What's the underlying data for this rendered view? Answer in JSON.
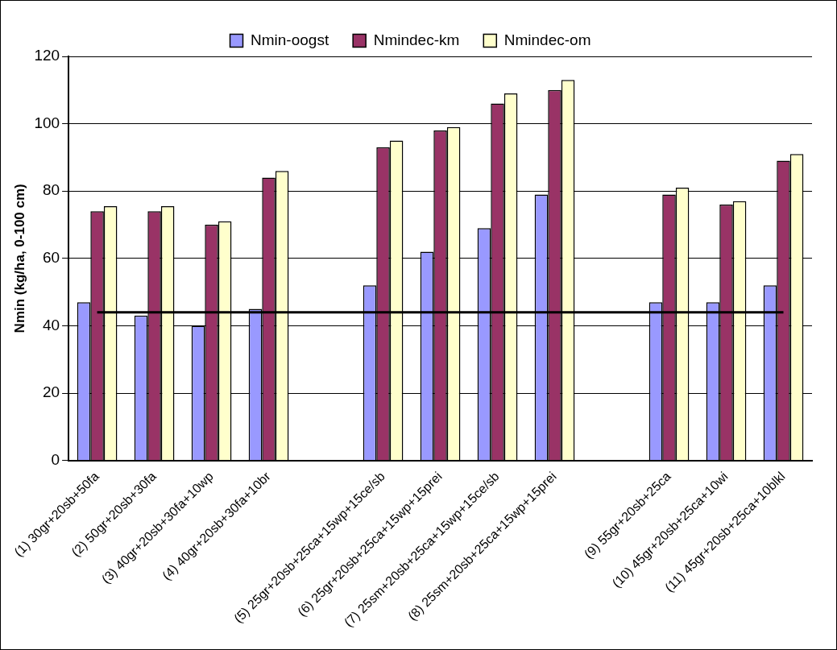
{
  "chart_data": {
    "type": "bar",
    "ylabel": "Nmin (kg/ha, 0-100 cm)",
    "categories": [
      "(1) 30gr+20sb+50fa",
      "(2) 50gr+20sb+30fa",
      "(3) 40gr+20sb+30fa+10wp",
      "(4) 40gr+20sb+30fa+10br",
      null,
      "(5) 25gr+20sb+25ca+15wp+15ce/sb",
      "(6) 25gr+20sb+25ca+15wp+15prei",
      "(7) 25sm+20sb+25ca+15wp+15ce/sb",
      "(8) 25sm+20sb+25ca+15wp+15prei",
      null,
      "(9) 55gr+20sb+25ca",
      "(10) 45gr+20sb+25ca+10wi",
      "(11) 45gr+20sb+25ca+10blkl"
    ],
    "series": [
      {
        "name": "Nmin-oogst",
        "color": "#9999ff",
        "values": [
          47,
          43,
          40,
          45,
          null,
          52,
          62,
          69,
          79,
          null,
          47,
          47,
          52
        ]
      },
      {
        "name": "Nmindec-km",
        "color": "#993366",
        "values": [
          74,
          74,
          70,
          84,
          null,
          93,
          98,
          106,
          110,
          null,
          79,
          76,
          89
        ]
      },
      {
        "name": "Nmindec-om",
        "color": "#ffffcc",
        "values": [
          75.5,
          75.5,
          71,
          86,
          null,
          95,
          99,
          109,
          113,
          null,
          81,
          77,
          91
        ]
      }
    ],
    "ylim": [
      0,
      120
    ],
    "yticks": [
      0,
      20,
      40,
      60,
      80,
      100,
      120
    ],
    "grid": "y",
    "legend": "top",
    "ref_lines": [
      {
        "axis": "y",
        "value": 44,
        "color": "#000000"
      }
    ]
  }
}
